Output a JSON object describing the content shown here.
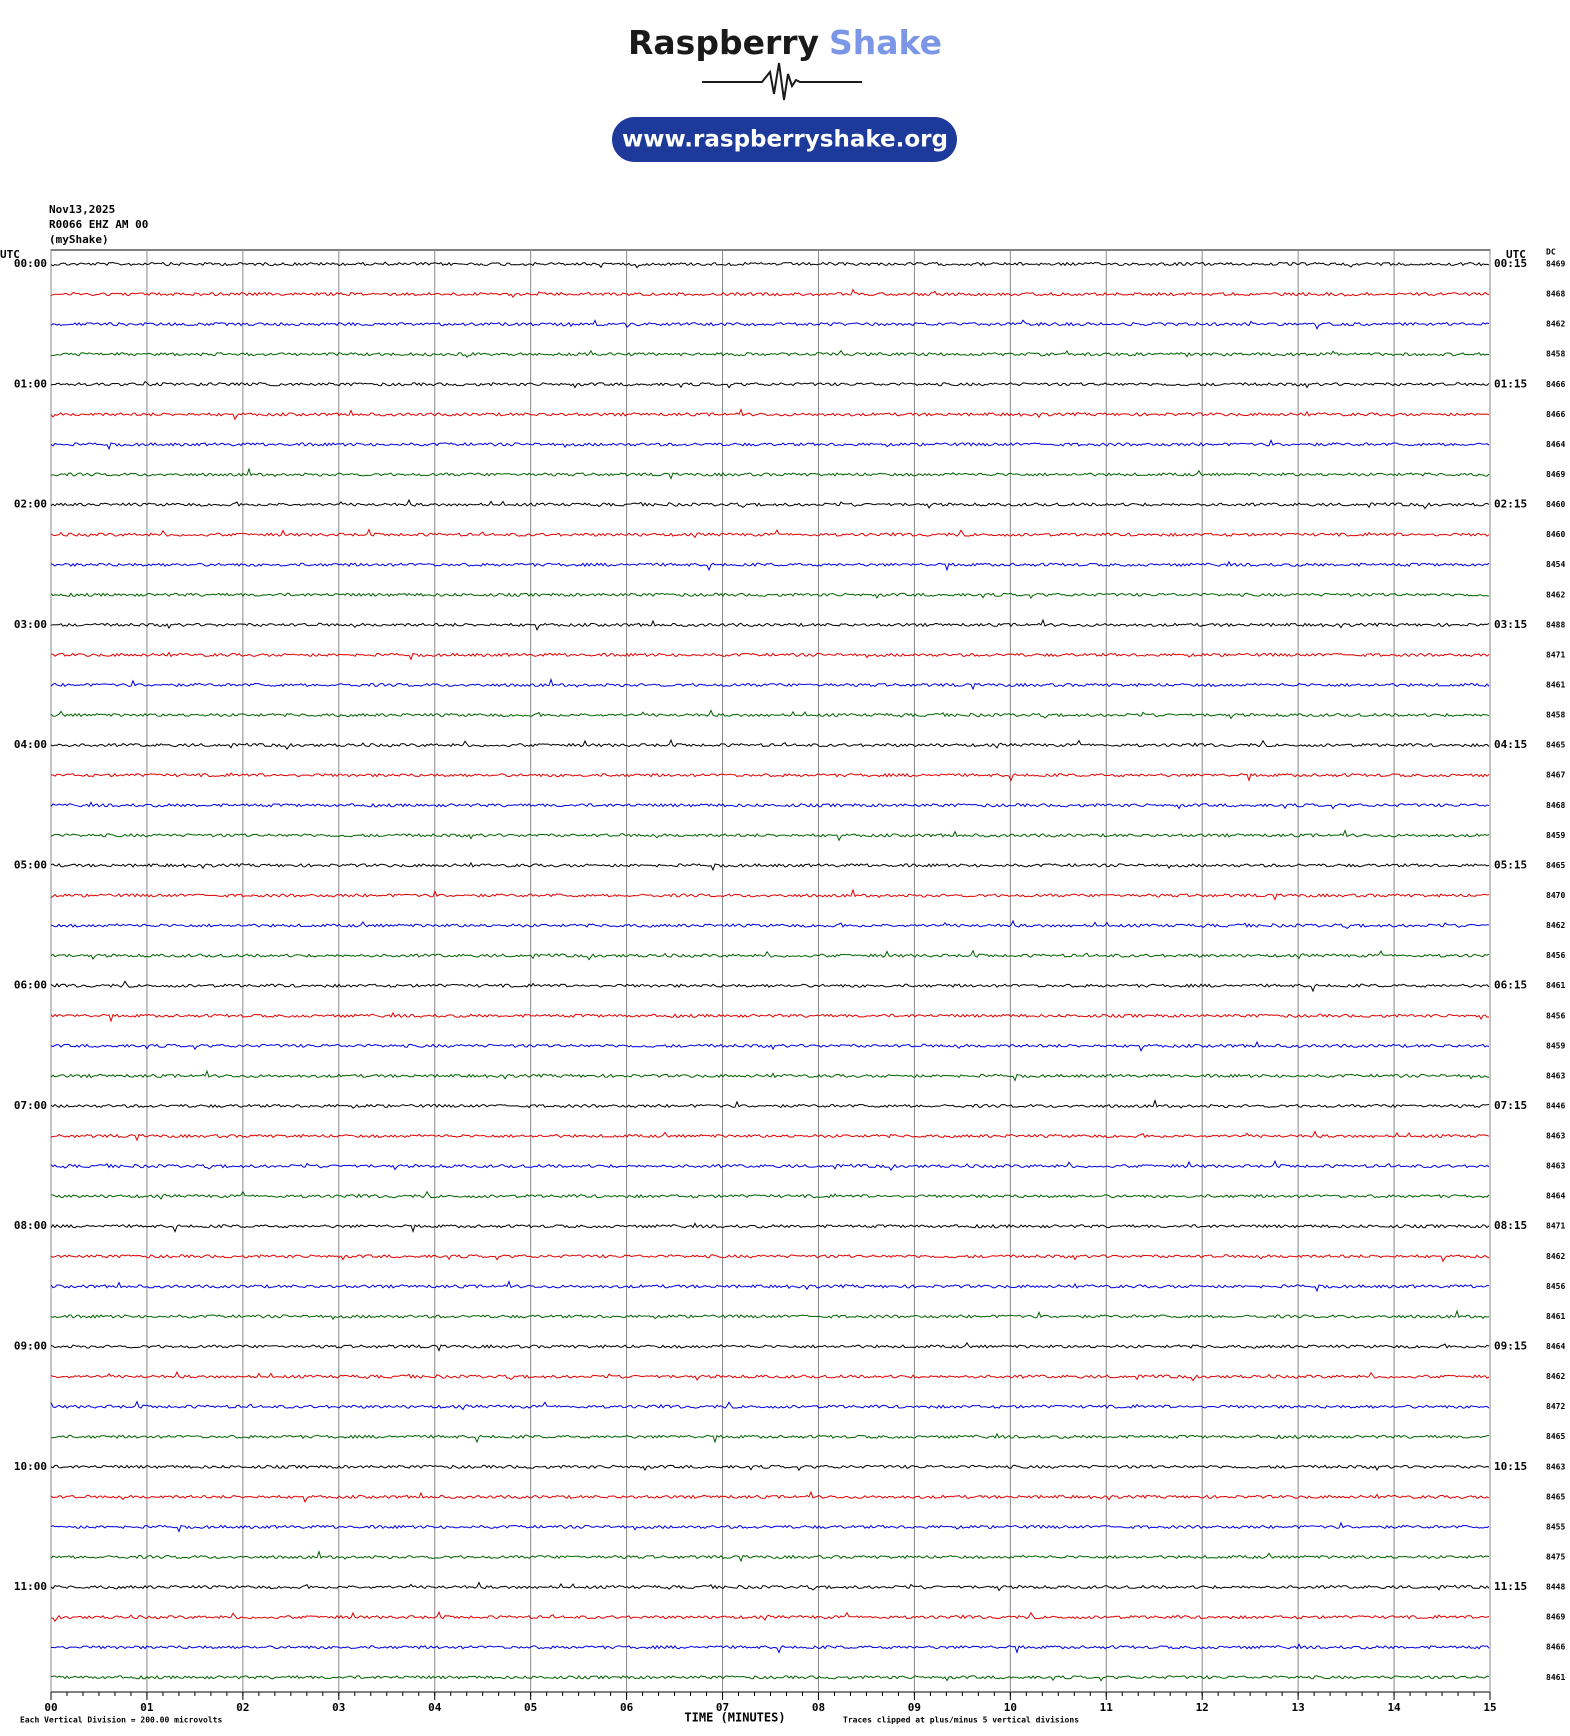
{
  "chart_data": {
    "type": "helicorder",
    "title": "Raspberry Shake",
    "title_parts": [
      "Raspberry",
      "Shake"
    ],
    "url": "www.raspberryshake.org",
    "date": "Nov13,2025",
    "station": "R0066 EHZ AM 00",
    "source": "(myShake)",
    "left_axis_title": "UTC",
    "right_axis_title": "UTC",
    "dc_title": "DC",
    "xlabel": "TIME (MINUTES)",
    "scale_note": "Each Vertical Division =  200.00 microvolts",
    "clip_note": "Traces clipped at plus/minus 5 vertical divisions",
    "colors": [
      "#000000",
      "#e00000",
      "#0000e0",
      "#006400"
    ],
    "xlim": [
      0,
      15
    ],
    "xticks": [
      {
        "value": 0,
        "label": "00"
      },
      {
        "value": 1,
        "label": "01"
      },
      {
        "value": 2,
        "label": "02"
      },
      {
        "value": 3,
        "label": "03"
      },
      {
        "value": 4,
        "label": "04"
      },
      {
        "value": 5,
        "label": "05"
      },
      {
        "value": 6,
        "label": "06"
      },
      {
        "value": 7,
        "label": "07"
      },
      {
        "value": 8,
        "label": "08"
      },
      {
        "value": 9,
        "label": "09"
      },
      {
        "value": 10,
        "label": "10"
      },
      {
        "value": 11,
        "label": "11"
      },
      {
        "value": 12,
        "label": "12"
      },
      {
        "value": 13,
        "label": "13"
      },
      {
        "value": 14,
        "label": "14"
      },
      {
        "value": 15,
        "label": "15"
      }
    ],
    "left_times": [
      "00:00",
      "01:00",
      "02:00",
      "03:00",
      "04:00",
      "05:00",
      "06:00",
      "07:00",
      "08:00",
      "09:00",
      "10:00",
      "11:00"
    ],
    "right_times": [
      "00:15",
      "01:15",
      "02:15",
      "03:15",
      "04:15",
      "05:15",
      "06:15",
      "07:15",
      "08:15",
      "09:15",
      "10:15",
      "11:15"
    ],
    "dc": [
      8469,
      8468,
      8462,
      8458,
      8466,
      8466,
      8464,
      8469,
      8460,
      8460,
      8454,
      8462,
      8488,
      8471,
      8461,
      8458,
      8465,
      8467,
      8468,
      8459,
      8465,
      8470,
      8462,
      8456,
      8461,
      8456,
      8459,
      8463,
      8446,
      8463,
      8463,
      8464,
      8471,
      8462,
      8456,
      8461,
      8464,
      8462,
      8472,
      8465,
      8463,
      8465,
      8455,
      8475,
      8448,
      8469,
      8466,
      8461
    ]
  }
}
